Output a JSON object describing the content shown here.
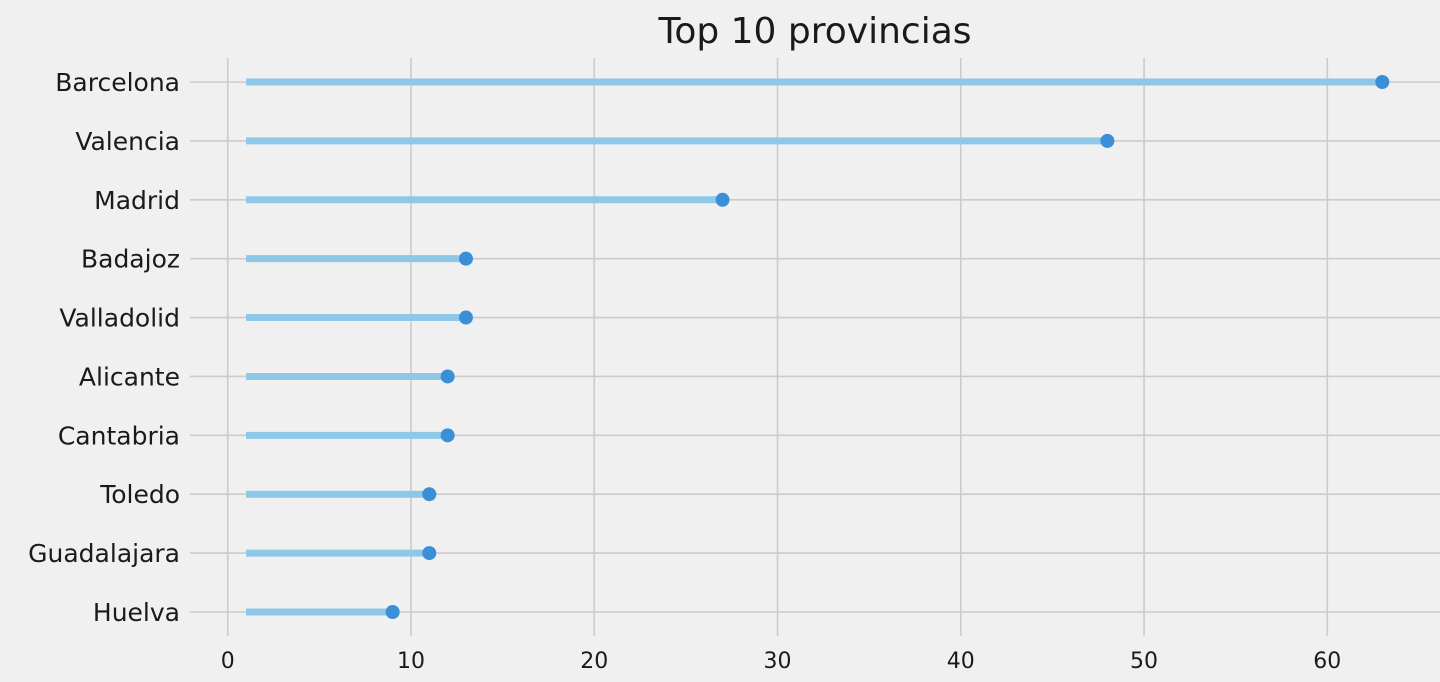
{
  "chart_data": {
    "type": "lollipop",
    "title": "Top 10 provincias",
    "xlabel": "",
    "ylabel": "",
    "categories": [
      "Barcelona",
      "Valencia",
      "Madrid",
      "Badajoz",
      "Valladolid",
      "Alicante",
      "Cantabria",
      "Toledo",
      "Guadalajara",
      "Huelva"
    ],
    "values": [
      63,
      48,
      27,
      13,
      13,
      12,
      12,
      11,
      11,
      9
    ],
    "stem_start": 1,
    "xlim": [
      -3.15,
      66.15
    ],
    "xticks": [
      0,
      10,
      20,
      30,
      40,
      50,
      60
    ],
    "grid": true,
    "colors": {
      "stem": "#8ec8e8",
      "marker": "#3a8fd6",
      "background": "#f0f0f0",
      "grid": "#cbcbcb"
    }
  }
}
